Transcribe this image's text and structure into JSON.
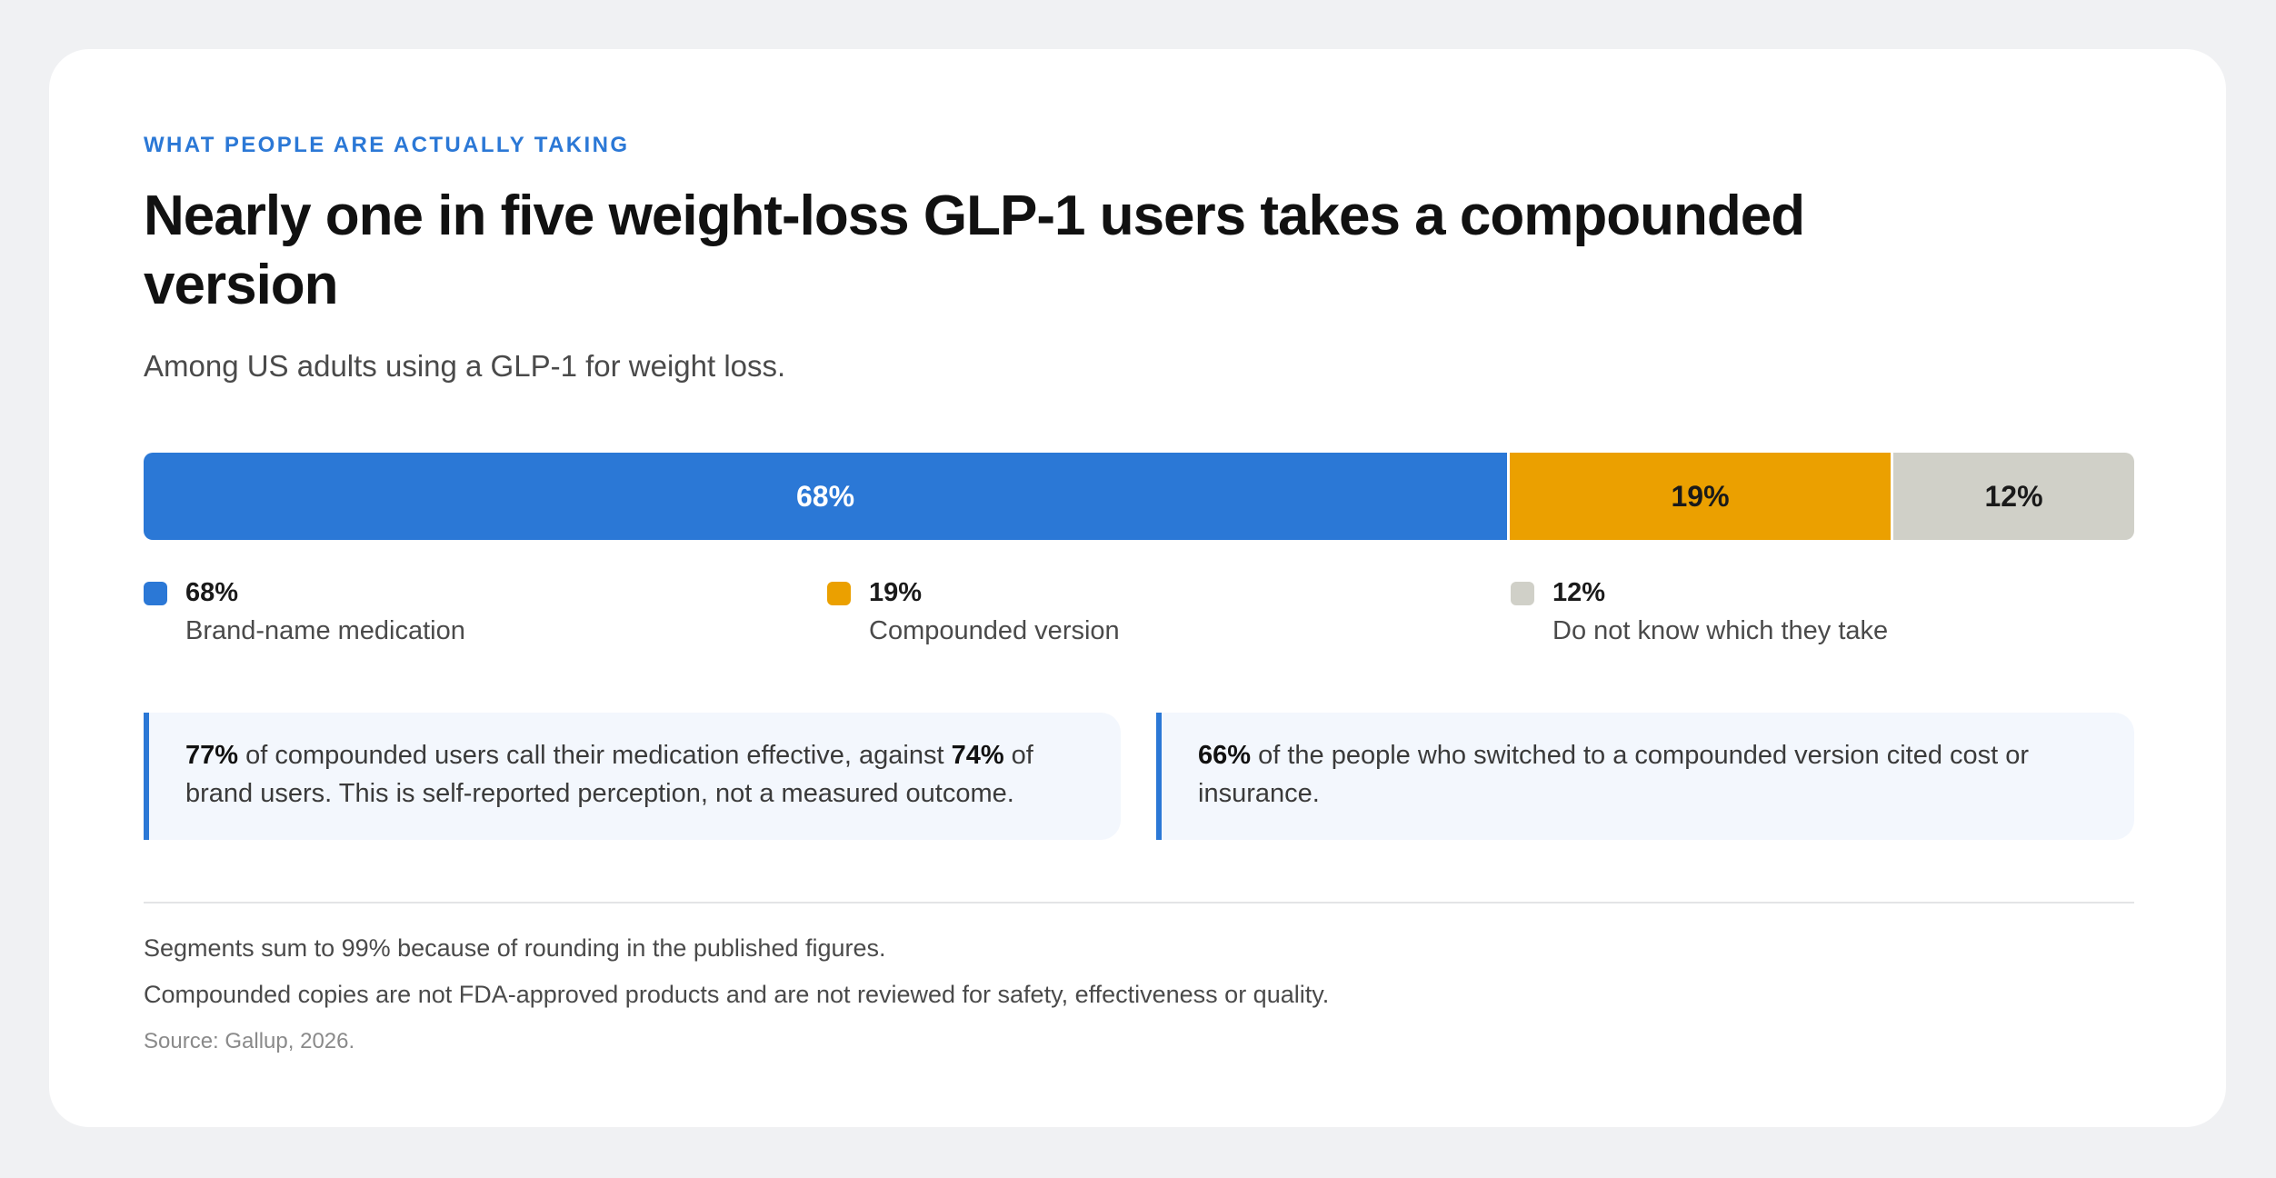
{
  "eyebrow": "WHAT PEOPLE ARE ACTUALLY TAKING",
  "title": "Nearly one in five weight-loss GLP-1 users takes a compounded version",
  "subtitle": "Among US adults using a GLP-1 for weight loss.",
  "chart_data": {
    "type": "bar",
    "orientation": "horizontal-stacked",
    "categories": [
      "Brand-name medication",
      "Compounded version",
      "Do not know which they take"
    ],
    "values": [
      68,
      19,
      12
    ],
    "labels": [
      "68%",
      "19%",
      "12%"
    ],
    "colors": [
      "#2b78d6",
      "#eba000",
      "#d0d0c8"
    ],
    "label_colors": [
      "#ffffff",
      "#1a1a1a",
      "#1a1a1a"
    ],
    "title": "Nearly one in five weight-loss GLP-1 users takes a compounded version",
    "legend_position": "bottom"
  },
  "callouts": [
    {
      "parts": [
        {
          "b": true,
          "t": "77%"
        },
        {
          "b": false,
          "t": " of compounded users call their medication effective, against "
        },
        {
          "b": true,
          "t": "74%"
        },
        {
          "b": false,
          "t": " of brand users. This is self-reported perception, not a measured outcome."
        }
      ]
    },
    {
      "parts": [
        {
          "b": true,
          "t": "66%"
        },
        {
          "b": false,
          "t": " of the people who switched to a compounded version cited cost or insurance."
        }
      ]
    }
  ],
  "notes": [
    "Segments sum to 99% because of rounding in the published figures.",
    "Compounded copies are not FDA-approved products and are not reviewed for safety, effectiveness or quality."
  ],
  "source": "Source: Gallup, 2026."
}
